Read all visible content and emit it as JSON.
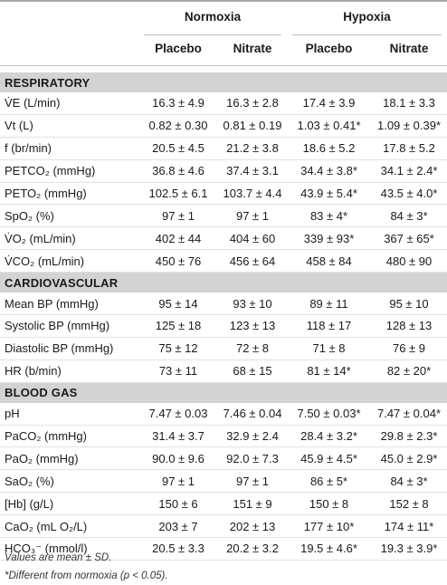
{
  "header": {
    "group_normoxia": "Normoxia",
    "group_hypoxia": "Hypoxia",
    "columns": [
      "Placebo",
      "Nitrate",
      "Placebo",
      "Nitrate"
    ]
  },
  "sections": [
    {
      "title": "RESPIRATORY",
      "rows": [
        {
          "label": "V̇E (L/min)",
          "values": [
            "16.3 ± 4.9",
            "16.3 ± 2.8",
            "17.4 ± 3.9",
            "18.1 ± 3.3"
          ]
        },
        {
          "label": "Vt (L)",
          "values": [
            "0.82 ± 0.30",
            "0.81 ± 0.19",
            "1.03 ± 0.41*",
            "1.09 ± 0.39*"
          ]
        },
        {
          "label": "f (br/min)",
          "values": [
            "20.5 ± 4.5",
            "21.2 ± 3.8",
            "18.6 ± 5.2",
            "17.8 ± 5.2"
          ]
        },
        {
          "label": "PETCO₂ (mmHg)",
          "values": [
            "36.8 ± 4.6",
            "37.4 ± 3.1",
            "34.4 ± 3.8*",
            "34.1 ± 2.4*"
          ]
        },
        {
          "label": "PETO₂ (mmHg)",
          "values": [
            "102.5 ± 6.1",
            "103.7 ± 4.4",
            "43.9 ± 5.4*",
            "43.5 ± 4.0*"
          ]
        },
        {
          "label": "SpO₂ (%)",
          "values": [
            "97 ± 1",
            "97 ± 1",
            "83 ± 4*",
            "84 ± 3*"
          ]
        },
        {
          "label": "V̇O₂ (mL/min)",
          "values": [
            "402 ± 44",
            "404 ± 60",
            "339 ± 93*",
            "367 ± 65*"
          ]
        },
        {
          "label": "V̇CO₂ (mL/min)",
          "values": [
            "450 ± 76",
            "456 ± 64",
            "458 ± 84",
            "480 ± 90"
          ]
        }
      ]
    },
    {
      "title": "CARDIOVASCULAR",
      "rows": [
        {
          "label": "Mean BP (mmHg)",
          "values": [
            "95 ± 14",
            "93 ± 10",
            "89 ± 11",
            "95 ± 10"
          ]
        },
        {
          "label": "Systolic BP (mmHg)",
          "values": [
            "125 ± 18",
            "123 ± 13",
            "118 ± 17",
            "128 ± 13"
          ]
        },
        {
          "label": "Diastolic BP (mmHg)",
          "values": [
            "75 ± 12",
            "72 ± 8",
            "71 ± 8",
            "76 ± 9"
          ]
        },
        {
          "label": "HR (b/min)",
          "values": [
            "73 ± 11",
            "68 ± 15",
            "81 ± 14*",
            "82 ± 20*"
          ]
        }
      ]
    },
    {
      "title": "BLOOD GAS",
      "rows": [
        {
          "label": "pH",
          "values": [
            "7.47 ± 0.03",
            "7.46 ± 0.04",
            "7.50 ± 0.03*",
            "7.47 ± 0.04*"
          ]
        },
        {
          "label": "PaCO₂ (mmHg)",
          "values": [
            "31.4 ± 3.7",
            "32.9 ± 2.4",
            "28.4 ± 3.2*",
            "29.8 ± 2.3*"
          ]
        },
        {
          "label": "PaO₂ (mmHg)",
          "values": [
            "90.0 ± 9.6",
            "92.0 ± 7.3",
            "45.9 ± 4.5*",
            "45.0 ± 2.9*"
          ]
        },
        {
          "label": "SaO₂ (%)",
          "values": [
            "97 ± 1",
            "97 ± 1",
            "86 ± 5*",
            "84 ± 3*"
          ]
        },
        {
          "label": "[Hb] (g/L)",
          "values": [
            "150 ± 6",
            "151 ± 9",
            "150 ± 8",
            "152 ± 8"
          ]
        },
        {
          "label": "CaO₂ (mL O₂/L)",
          "values": [
            "203 ± 7",
            "202 ± 13",
            "177 ± 10*",
            "174 ± 11*"
          ]
        },
        {
          "label": "HCO₃⁻ (mmol/l)",
          "values": [
            "20.5 ± 3.3",
            "20.2 ± 3.2",
            "19.5 ± 4.6*",
            "19.3 ± 3.9*"
          ]
        }
      ]
    }
  ],
  "footnotes": [
    "Values are mean ± SD.",
    "*Different from normoxia (p < 0.05)."
  ]
}
